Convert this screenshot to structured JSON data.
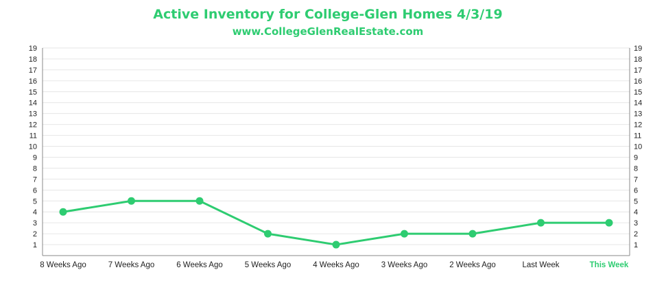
{
  "chart_data": {
    "type": "line",
    "title": "Active Inventory for College-Glen Homes 4/3/19",
    "subtitle": "www.CollegeGlenRealEstate.com",
    "categories": [
      "8 Weeks Ago",
      "7 Weeks Ago",
      "6 Weeks Ago",
      "5 Weeks Ago",
      "4 Weeks Ago",
      "3 Weeks Ago",
      "2 Weeks Ago",
      "Last Week",
      "This Week"
    ],
    "highlight_category": "This Week",
    "series": [
      {
        "values": [
          4,
          5,
          5,
          2,
          1,
          2,
          2,
          3,
          3
        ]
      }
    ],
    "ylim": [
      0,
      19
    ],
    "yticks": [
      1,
      2,
      3,
      4,
      5,
      6,
      7,
      8,
      9,
      10,
      11,
      12,
      13,
      14,
      15,
      16,
      17,
      18,
      19
    ],
    "dual_y_axis": true,
    "grid": true,
    "legend": "none",
    "colors": {
      "series": "#2ecc71",
      "title": "#2ecc71",
      "grid": "#e6e6e6"
    }
  }
}
